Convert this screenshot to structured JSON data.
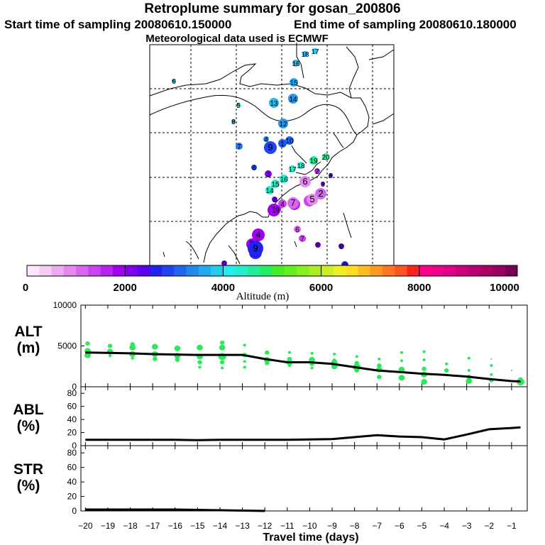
{
  "header": {
    "title": "Retroplume summary for gosan_200806",
    "start": "Start time of sampling 20080610.150000",
    "end": "End time of sampling 20080610.180000",
    "met": "Meteorological data used is ECMWF"
  },
  "colorbar": {
    "title": "Altitude (m)",
    "ticks": [
      "0",
      "2000",
      "4000",
      "6000",
      "8000",
      "10000"
    ],
    "tick_values": [
      0,
      2000,
      4000,
      6000,
      8000,
      10000
    ],
    "colors": [
      "#fbe6fb",
      "#f5ccf5",
      "#eeaaf0",
      "#e488ee",
      "#d766ee",
      "#c844ee",
      "#b822ee",
      "#a000ee",
      "#8000ee",
      "#5a00ee",
      "#2222ee",
      "#2244ee",
      "#2266ee",
      "#2288ee",
      "#22aaee",
      "#22ccee",
      "#22eeee",
      "#22eecc",
      "#22ee99",
      "#22ee66",
      "#44ee22",
      "#66ee22",
      "#88ee22",
      "#aaee22",
      "#ccee22",
      "#eeee22",
      "#ffdd22",
      "#ffbb22",
      "#ff9922",
      "#ff7722",
      "#ff5522",
      "#ff2222",
      "#ff0088",
      "#ee0088",
      "#dd0088",
      "#cc0077",
      "#bb0077",
      "#aa0066",
      "#990066",
      "#770055"
    ]
  },
  "map_markers": [
    {
      "label": "6",
      "color": "#2aa6d0",
      "r": 3
    },
    {
      "label": "5",
      "color": "#22cc99",
      "r": 3
    },
    {
      "label": "8",
      "color": "#2299cc",
      "r": 3
    },
    {
      "label": "7",
      "color": "#2277ee",
      "r": 5
    },
    {
      "label": "4",
      "color": "#2288ee",
      "r": 4
    },
    {
      "label": "9",
      "color": "#2244ee",
      "r": 9
    },
    {
      "label": "1",
      "color": "#2255ee",
      "r": 6
    },
    {
      "label": "10",
      "color": "#2266ee",
      "r": 6
    },
    {
      "label": "12",
      "color": "#2299ee",
      "r": 7
    },
    {
      "label": "13",
      "color": "#22bbee",
      "r": 7
    },
    {
      "label": "14",
      "color": "#2299ee",
      "r": 7
    },
    {
      "label": "15",
      "color": "#22aaee",
      "r": 6
    },
    {
      "label": "16",
      "color": "#22bbee",
      "r": 5
    },
    {
      "label": "18",
      "color": "#22aaee",
      "r": 4
    },
    {
      "label": "17",
      "color": "#22ccee",
      "r": 4
    },
    {
      "label": "6",
      "color": "#2244ee",
      "r": 4
    },
    {
      "label": "17",
      "color": "#22eecc",
      "r": 5
    },
    {
      "label": "18",
      "color": "#22eecc",
      "r": 5
    },
    {
      "label": "19",
      "color": "#22ee99",
      "r": 6
    },
    {
      "label": "20",
      "color": "#22ee99",
      "r": 5
    },
    {
      "label": "14",
      "color": "#22eecc",
      "r": 6
    },
    {
      "label": "15",
      "color": "#22eecc",
      "r": 6
    },
    {
      "label": "16",
      "color": "#22eecc",
      "r": 6
    },
    {
      "label": "1",
      "color": "#a000ee",
      "r": 9
    },
    {
      "label": "4",
      "color": "#b822ee",
      "r": 8
    },
    {
      "label": "3",
      "color": "#c844ee",
      "r": 8
    },
    {
      "label": "2",
      "color": "#d766ee",
      "r": 8
    },
    {
      "label": "5",
      "color": "#e488ee",
      "r": 8
    },
    {
      "label": "6",
      "color": "#e488ee",
      "r": 8
    },
    {
      "label": "7",
      "color": "#d766ee",
      "r": 8
    },
    {
      "label": "3",
      "color": "#8000ee",
      "r": 5
    },
    {
      "label": "2",
      "color": "#b822ee",
      "r": 4
    },
    {
      "label": "4",
      "color": "#c844ee",
      "r": 6
    },
    {
      "label": "9",
      "color": "#a000ee",
      "r": 5
    },
    {
      "label": "1",
      "color": "#5a00ee",
      "r": 4
    },
    {
      "label": "4",
      "color": "#a000ee",
      "r": 9
    },
    {
      "label": "5",
      "color": "#a000ee",
      "r": 8
    },
    {
      "label": "8",
      "color": "#2222ee",
      "r": 9
    },
    {
      "label": "9",
      "color": "#2222ee",
      "r": 11
    },
    {
      "label": "6",
      "color": "#d766ee",
      "r": 5
    },
    {
      "label": "7",
      "color": "#c844ee",
      "r": 5
    },
    {
      "label": "8",
      "color": "#8000ee",
      "r": 4
    },
    {
      "label": "9",
      "color": "#5a00ee",
      "r": 4
    },
    {
      "label": "9",
      "color": "#2222ee",
      "r": 5
    },
    {
      "label": "9",
      "color": "#8000ee",
      "r": 4
    },
    {
      "label": "3",
      "color": "#5a00ee",
      "r": 3
    },
    {
      "label": "8",
      "color": "#2222ee",
      "r": 3
    }
  ],
  "chart_data": [
    {
      "type": "scatter",
      "panel": "ALT",
      "ylabel": "ALT (m)",
      "ylim": [
        0,
        10000
      ],
      "yticks": [
        "0",
        "5000",
        "10000"
      ],
      "yticks_values": [
        0,
        5000,
        10000
      ],
      "xlim": [
        -20.2,
        -0.3
      ],
      "median_line": {
        "x": [
          -20,
          -19,
          -18,
          -17,
          -16,
          -15,
          -14,
          -13,
          -12,
          -11,
          -10,
          -9,
          -8,
          -7,
          -6,
          -5,
          -4,
          -3,
          -2,
          -1,
          -0.6
        ],
        "y": [
          4200,
          4150,
          4100,
          4000,
          3950,
          3900,
          3900,
          3900,
          3400,
          3000,
          3000,
          2800,
          2400,
          2000,
          1800,
          1600,
          1450,
          1250,
          950,
          700,
          650
        ]
      },
      "points": [
        {
          "x": -19.9,
          "y": 3850,
          "s": 4
        },
        {
          "x": -19.9,
          "y": 4400,
          "s": 4
        },
        {
          "x": -19.9,
          "y": 5300,
          "s": 3
        },
        {
          "x": -19.9,
          "y": 4200,
          "s": 3
        },
        {
          "x": -18.9,
          "y": 4300,
          "s": 4
        },
        {
          "x": -18.9,
          "y": 5000,
          "s": 3
        },
        {
          "x": -18.9,
          "y": 3800,
          "s": 2
        },
        {
          "x": -17.9,
          "y": 4000,
          "s": 4
        },
        {
          "x": -17.9,
          "y": 4800,
          "s": 4
        },
        {
          "x": -17.9,
          "y": 5200,
          "s": 3
        },
        {
          "x": -17.9,
          "y": 3500,
          "s": 2
        },
        {
          "x": -16.9,
          "y": 4000,
          "s": 4
        },
        {
          "x": -16.9,
          "y": 4900,
          "s": 4
        },
        {
          "x": -16.9,
          "y": 3400,
          "s": 3
        },
        {
          "x": -16.9,
          "y": 3900,
          "s": 2
        },
        {
          "x": -15.9,
          "y": 3800,
          "s": 4
        },
        {
          "x": -15.9,
          "y": 4700,
          "s": 4
        },
        {
          "x": -15.9,
          "y": 3300,
          "s": 3
        },
        {
          "x": -14.9,
          "y": 3700,
          "s": 4
        },
        {
          "x": -14.9,
          "y": 4800,
          "s": 4
        },
        {
          "x": -14.9,
          "y": 3000,
          "s": 3
        },
        {
          "x": -14.9,
          "y": 2400,
          "s": 2
        },
        {
          "x": -13.9,
          "y": 3700,
          "s": 5
        },
        {
          "x": -13.9,
          "y": 4800,
          "s": 4
        },
        {
          "x": -13.9,
          "y": 5400,
          "s": 3
        },
        {
          "x": -13.9,
          "y": 3000,
          "s": 3
        },
        {
          "x": -13.9,
          "y": 2300,
          "s": 2
        },
        {
          "x": -12.9,
          "y": 3900,
          "s": 3
        },
        {
          "x": -12.9,
          "y": 5100,
          "s": 2
        },
        {
          "x": -12.9,
          "y": 3100,
          "s": 2
        },
        {
          "x": -12.9,
          "y": 2400,
          "s": 2
        },
        {
          "x": -11.9,
          "y": 3300,
          "s": 4
        },
        {
          "x": -11.9,
          "y": 4200,
          "s": 3
        },
        {
          "x": -11.9,
          "y": 2900,
          "s": 3
        },
        {
          "x": -10.9,
          "y": 3000,
          "s": 4
        },
        {
          "x": -10.9,
          "y": 3400,
          "s": 3
        },
        {
          "x": -10.9,
          "y": 4200,
          "s": 2
        },
        {
          "x": -10.9,
          "y": 2600,
          "s": 2
        },
        {
          "x": -9.9,
          "y": 3300,
          "s": 4
        },
        {
          "x": -9.9,
          "y": 2800,
          "s": 3
        },
        {
          "x": -9.9,
          "y": 4100,
          "s": 2
        },
        {
          "x": -9.9,
          "y": 2300,
          "s": 2
        },
        {
          "x": -8.9,
          "y": 3000,
          "s": 4
        },
        {
          "x": -8.9,
          "y": 2500,
          "s": 4
        },
        {
          "x": -8.9,
          "y": 4000,
          "s": 2
        },
        {
          "x": -8.9,
          "y": 3300,
          "s": 2
        },
        {
          "x": -7.9,
          "y": 2400,
          "s": 5
        },
        {
          "x": -7.9,
          "y": 2900,
          "s": 3
        },
        {
          "x": -7.9,
          "y": 2000,
          "s": 3
        },
        {
          "x": -7.9,
          "y": 3700,
          "s": 2
        },
        {
          "x": -6.9,
          "y": 2100,
          "s": 4
        },
        {
          "x": -6.9,
          "y": 2600,
          "s": 3
        },
        {
          "x": -6.9,
          "y": 1200,
          "s": 3
        },
        {
          "x": -6.9,
          "y": 3400,
          "s": 2
        },
        {
          "x": -5.9,
          "y": 1100,
          "s": 4
        },
        {
          "x": -5.9,
          "y": 2100,
          "s": 4
        },
        {
          "x": -5.9,
          "y": 3200,
          "s": 2
        },
        {
          "x": -5.9,
          "y": 4200,
          "s": 2
        },
        {
          "x": -4.9,
          "y": 600,
          "s": 4
        },
        {
          "x": -4.9,
          "y": 1500,
          "s": 4
        },
        {
          "x": -4.9,
          "y": 2200,
          "s": 3
        },
        {
          "x": -4.9,
          "y": 3300,
          "s": 2
        },
        {
          "x": -4.9,
          "y": 4300,
          "s": 2
        },
        {
          "x": -3.9,
          "y": 2000,
          "s": 3
        },
        {
          "x": -3.9,
          "y": 2800,
          "s": 2
        },
        {
          "x": -2.9,
          "y": 700,
          "s": 4
        },
        {
          "x": -2.9,
          "y": 1200,
          "s": 3
        },
        {
          "x": -2.9,
          "y": 2000,
          "s": 2
        },
        {
          "x": -2.9,
          "y": 3500,
          "s": 2
        },
        {
          "x": -1.9,
          "y": 800,
          "s": 3
        },
        {
          "x": -1.9,
          "y": 1500,
          "s": 2
        },
        {
          "x": -1.9,
          "y": 2600,
          "s": 2
        },
        {
          "x": -1.9,
          "y": 3400,
          "s": 1
        },
        {
          "x": -1.0,
          "y": 2000,
          "s": 1
        },
        {
          "x": -0.6,
          "y": 600,
          "s": 5
        },
        {
          "x": -0.6,
          "y": 900,
          "s": 3
        }
      ]
    },
    {
      "type": "line",
      "panel": "ABL",
      "ylabel": "ABL (%)",
      "ylim": [
        0,
        90
      ],
      "yticks": [
        "0",
        "20",
        "40",
        "60",
        "80"
      ],
      "yticks_values": [
        0,
        20,
        40,
        60,
        80
      ],
      "xlim": [
        -20.2,
        -0.3
      ],
      "x": [
        -20,
        -19,
        -18,
        -17,
        -16,
        -15,
        -14,
        -13,
        -12,
        -11,
        -10,
        -9,
        -8,
        -7,
        -6,
        -5,
        -4,
        -3,
        -2,
        -1,
        -0.6
      ],
      "y": [
        9,
        9,
        9,
        9,
        9,
        8.5,
        9,
        9,
        9,
        9,
        9.5,
        10,
        13,
        16,
        14,
        13,
        9.5,
        17,
        25,
        27,
        28
      ]
    },
    {
      "type": "line",
      "panel": "STR",
      "ylabel": "STR (%)",
      "ylim": [
        0,
        90
      ],
      "yticks": [
        "0",
        "20",
        "40",
        "60",
        "80"
      ],
      "yticks_values": [
        0,
        20,
        40,
        60,
        80
      ],
      "xlim": [
        -20.2,
        -0.3
      ],
      "x": [
        -20,
        -19,
        -18,
        -17,
        -16,
        -15,
        -14,
        -13,
        -12
      ],
      "y": [
        2,
        2,
        2,
        2,
        2,
        1.5,
        1,
        0.5,
        0
      ]
    }
  ],
  "x_axis": {
    "title": "Travel time (days)",
    "tick_labels": [
      "−20",
      "−19",
      "−18",
      "−17",
      "−16",
      "−15",
      "−14",
      "−13",
      "−12",
      "−11",
      "−10",
      "−9",
      "−8",
      "−7",
      "−6",
      "−5",
      "−4",
      "−3",
      "−2",
      "−1"
    ],
    "tick_values": [
      -20,
      -19,
      -18,
      -17,
      -16,
      -15,
      -14,
      -13,
      -12,
      -11,
      -10,
      -9,
      -8,
      -7,
      -6,
      -5,
      -4,
      -3,
      -2,
      -1
    ]
  },
  "panel_labels": {
    "alt": [
      "ALT",
      "(m)"
    ],
    "abl": [
      "ABL",
      "(%)"
    ],
    "str": [
      "STR",
      "(%)"
    ]
  }
}
